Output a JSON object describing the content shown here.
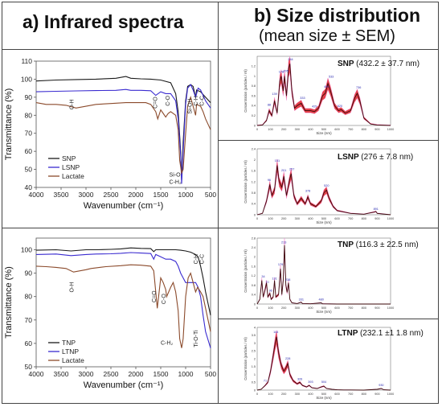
{
  "headings": {
    "a": "a) Infrared spectra",
    "b_line1": "b) Size distribution",
    "b_line2": "(mean size ± SEM)"
  },
  "chart_data": [
    {
      "id": "ir_top",
      "type": "line",
      "xlabel": "Wavenumber (cm⁻¹)",
      "ylabel": "Transmittance (%)",
      "xlim": [
        4000,
        500
      ],
      "ylim": [
        40,
        110
      ],
      "xticks": [
        4000,
        3500,
        3000,
        2500,
        2000,
        1500,
        1000,
        500
      ],
      "yticks": [
        40,
        50,
        60,
        70,
        80,
        90,
        100,
        110
      ],
      "legend": "bottom-left",
      "annotations": [
        "O-H",
        "C=O",
        "C-O",
        "Si-OH",
        "C-H",
        "C-C",
        "Si-O",
        "C-H₂"
      ],
      "series": [
        {
          "name": "SNP",
          "color": "#1a1a1a",
          "x": [
            4000,
            3600,
            3200,
            2800,
            2400,
            2200,
            2100,
            1900,
            1700,
            1500,
            1300,
            1200,
            1150,
            1100,
            1080,
            1050,
            1000,
            960,
            900,
            850,
            800,
            780,
            700,
            600,
            500
          ],
          "y": [
            99,
            99.5,
            99.8,
            100,
            100.5,
            101.5,
            100.5,
            100.2,
            100,
            99.5,
            98,
            92,
            82,
            60,
            44,
            65,
            88,
            96,
            97,
            96,
            90,
            94,
            93,
            90,
            87
          ]
        },
        {
          "name": "LSNP",
          "color": "#3a2bd0",
          "x": [
            4000,
            3600,
            3200,
            2800,
            2400,
            2200,
            2100,
            1900,
            1700,
            1600,
            1500,
            1400,
            1300,
            1200,
            1150,
            1100,
            1080,
            1050,
            1000,
            960,
            900,
            850,
            800,
            750,
            700,
            600,
            500
          ],
          "y": [
            93,
            93.3,
            93.5,
            93.7,
            93.8,
            94.3,
            93.8,
            93.8,
            93.6,
            91,
            93,
            92,
            92,
            88,
            78,
            58,
            42,
            60,
            86,
            95,
            97,
            94,
            90,
            95,
            94,
            88,
            84
          ]
        },
        {
          "name": "Lactate",
          "color": "#8b4a2b",
          "x": [
            4000,
            3800,
            3600,
            3400,
            3200,
            3000,
            2800,
            2500,
            2200,
            2000,
            1800,
            1700,
            1600,
            1560,
            1500,
            1450,
            1400,
            1350,
            1300,
            1200,
            1150,
            1120,
            1080,
            1050,
            1000,
            960,
            900,
            850,
            800,
            780,
            700,
            650,
            600,
            500
          ],
          "y": [
            87,
            86,
            86,
            85.5,
            84,
            85,
            86,
            86.5,
            87,
            87,
            87,
            86,
            82,
            78,
            83,
            81,
            79,
            81,
            82,
            80,
            72,
            55,
            48,
            50,
            70,
            85,
            90,
            85,
            80,
            86,
            85,
            82,
            78,
            72
          ]
        }
      ]
    },
    {
      "id": "ir_bottom",
      "type": "line",
      "xlabel": "Wavenumber (cm⁻¹)",
      "ylabel": "Transmittance (%)",
      "xlim": [
        4000,
        500
      ],
      "ylim": [
        50,
        105
      ],
      "xticks": [
        4000,
        3500,
        3000,
        2500,
        2000,
        1500,
        1000,
        500
      ],
      "yticks": [
        50,
        60,
        70,
        80,
        90,
        100
      ],
      "legend": "bottom-left",
      "annotations": [
        "O-H",
        "C=O",
        "C-O",
        "C-H",
        "C-C",
        "C-H₂",
        "Ti-O-Ti"
      ],
      "series": [
        {
          "name": "TNP",
          "color": "#1a1a1a",
          "x": [
            4000,
            3600,
            3300,
            3000,
            2800,
            2500,
            2300,
            2100,
            1900,
            1700,
            1640,
            1600,
            1500,
            1400,
            1300,
            1200,
            1100,
            1000,
            900,
            800,
            750,
            700,
            650,
            600,
            500
          ],
          "y": [
            99.8,
            100,
            99.5,
            100,
            100,
            100.2,
            100.4,
            100.8,
            100.6,
            100.5,
            99.2,
            100,
            100,
            100,
            100,
            100,
            99.8,
            99.5,
            99,
            98,
            97,
            93,
            88,
            82,
            72
          ]
        },
        {
          "name": "LTNP",
          "color": "#3a2bd0",
          "x": [
            4000,
            3600,
            3300,
            3000,
            2800,
            2500,
            2300,
            2100,
            1900,
            1700,
            1640,
            1600,
            1500,
            1400,
            1300,
            1200,
            1150,
            1100,
            1050,
            1000,
            900,
            800,
            750,
            700,
            650,
            600,
            500
          ],
          "y": [
            98,
            98.2,
            97.5,
            98,
            98.2,
            98.3,
            98.5,
            98.8,
            98.6,
            98.4,
            96,
            98,
            97,
            96,
            96,
            95,
            93,
            90,
            88,
            86,
            86,
            86,
            84,
            80,
            72,
            65,
            58
          ]
        },
        {
          "name": "Lactate",
          "color": "#8b4a2b",
          "x": [
            4000,
            3800,
            3600,
            3400,
            3250,
            3000,
            2900,
            2600,
            2300,
            2100,
            1900,
            1700,
            1640,
            1600,
            1570,
            1500,
            1450,
            1400,
            1380,
            1300,
            1250,
            1200,
            1150,
            1120,
            1080,
            1050,
            1000,
            950,
            900,
            850,
            800,
            760,
            700,
            650,
            600,
            500
          ],
          "y": [
            93,
            92.8,
            92.5,
            92,
            90.5,
            91.5,
            92,
            92.8,
            93.2,
            93.6,
            93.4,
            93,
            91,
            82,
            75,
            88,
            86,
            83,
            80,
            84,
            86,
            82,
            74,
            62,
            58,
            62,
            80,
            88,
            90,
            86,
            82,
            84,
            82,
            80,
            75,
            65
          ]
        }
      ]
    },
    {
      "id": "size_snp",
      "type": "area",
      "label": "SNP",
      "stat": "(432.2 ± 37.7 nm)",
      "xlabel": "Size (nm)",
      "ylabel": "Concentration (particles / ml)",
      "xlim": [
        0,
        1000
      ],
      "ylim": [
        0,
        1.4
      ],
      "xticks": [
        0,
        100,
        200,
        300,
        400,
        500,
        600,
        700,
        800,
        900,
        1000
      ],
      "yticks": [
        0,
        0.2,
        0.4,
        0.6,
        0.8,
        1.0,
        1.2
      ],
      "peak_labels": [
        {
          "x": 90,
          "y": 0.38,
          "text": "88"
        },
        {
          "x": 130,
          "y": 0.6,
          "text": "139"
        },
        {
          "x": 180,
          "y": 1.05,
          "text": "178"
        },
        {
          "x": 215,
          "y": 1.07,
          "text": "205"
        },
        {
          "x": 250,
          "y": 1.3,
          "text": "244"
        },
        {
          "x": 340,
          "y": 0.52,
          "text": "333"
        },
        {
          "x": 430,
          "y": 0.35,
          "text": "429"
        },
        {
          "x": 520,
          "y": 0.75,
          "text": "499"
        },
        {
          "x": 555,
          "y": 0.95,
          "text": "533"
        },
        {
          "x": 620,
          "y": 0.36,
          "text": "620"
        },
        {
          "x": 760,
          "y": 0.73,
          "text": "736"
        }
      ],
      "x": [
        0,
        40,
        70,
        90,
        110,
        130,
        150,
        170,
        180,
        195,
        205,
        220,
        235,
        245,
        260,
        280,
        300,
        330,
        360,
        400,
        430,
        460,
        490,
        510,
        530,
        550,
        580,
        610,
        630,
        660,
        700,
        730,
        750,
        770,
        800,
        850,
        900,
        1000
      ],
      "y": [
        0,
        0.01,
        0.1,
        0.3,
        0.2,
        0.5,
        0.25,
        0.9,
        1.0,
        0.7,
        1.0,
        0.6,
        1.15,
        1.25,
        0.7,
        0.35,
        0.4,
        0.45,
        0.3,
        0.3,
        0.28,
        0.35,
        0.6,
        0.65,
        0.85,
        0.7,
        0.4,
        0.3,
        0.32,
        0.25,
        0.3,
        0.55,
        0.65,
        0.5,
        0.15,
        0.03,
        0.01,
        0
      ]
    },
    {
      "id": "size_lsnp",
      "type": "area",
      "label": "LSNP",
      "stat": "(276 ± 7.8 nm)",
      "xlabel": "Size (nm)",
      "ylabel": "Concentration (particles / ml)",
      "xlim": [
        0,
        1000
      ],
      "ylim": [
        0,
        2.4
      ],
      "xticks": [
        0,
        100,
        200,
        300,
        400,
        500,
        600,
        700,
        800,
        900,
        1000
      ],
      "yticks": [
        0,
        0.4,
        0.8,
        1.2,
        1.6,
        2.0,
        2.4
      ],
      "peak_labels": [
        {
          "x": 90,
          "y": 1.2,
          "text": "96"
        },
        {
          "x": 150,
          "y": 1.9,
          "text": "151"
        },
        {
          "x": 200,
          "y": 1.55,
          "text": "201"
        },
        {
          "x": 260,
          "y": 1.6,
          "text": "257"
        },
        {
          "x": 380,
          "y": 0.8,
          "text": "378"
        },
        {
          "x": 520,
          "y": 1.0,
          "text": "520"
        },
        {
          "x": 890,
          "y": 0.15,
          "text": "891"
        }
      ],
      "x": [
        0,
        40,
        70,
        95,
        110,
        130,
        150,
        165,
        185,
        200,
        220,
        240,
        255,
        275,
        300,
        330,
        360,
        380,
        400,
        440,
        480,
        500,
        520,
        540,
        570,
        600,
        650,
        700,
        800,
        880,
        890,
        900,
        1000
      ],
      "y": [
        0,
        0.05,
        0.5,
        1.1,
        0.7,
        0.9,
        1.8,
        1.2,
        1.0,
        1.4,
        0.7,
        1.2,
        1.5,
        0.7,
        0.4,
        0.6,
        0.4,
        0.65,
        0.4,
        0.3,
        0.5,
        0.8,
        0.9,
        0.6,
        0.3,
        0.15,
        0.1,
        0.05,
        0.02,
        0.1,
        0.12,
        0.05,
        0
      ]
    },
    {
      "id": "size_tnp",
      "type": "area",
      "label": "TNP",
      "stat": "(116.3 ± 22.5 nm)",
      "xlabel": "Size (nm)",
      "ylabel": "Concentration (particles / ml)",
      "xlim": [
        0,
        1000
      ],
      "ylim": [
        0,
        2.8
      ],
      "xticks": [
        0,
        100,
        200,
        300,
        400,
        500,
        600,
        700,
        800,
        900,
        1000
      ],
      "yticks": [
        0,
        0.4,
        0.8,
        1.2,
        1.6,
        2.0,
        2.4,
        2.8
      ],
      "peak_labels": [
        {
          "x": 45,
          "y": 1.1,
          "text": "34"
        },
        {
          "x": 75,
          "y": 0.85,
          "text": "70"
        },
        {
          "x": 100,
          "y": 0.5,
          "text": "96"
        },
        {
          "x": 130,
          "y": 1.0,
          "text": "131"
        },
        {
          "x": 175,
          "y": 1.6,
          "text": "179"
        },
        {
          "x": 200,
          "y": 2.55,
          "text": "213"
        },
        {
          "x": 230,
          "y": 0.95,
          "text": "238"
        },
        {
          "x": 330,
          "y": 0.12,
          "text": "331"
        },
        {
          "x": 480,
          "y": 0.12,
          "text": "480"
        }
      ],
      "x": [
        0,
        20,
        35,
        45,
        55,
        70,
        80,
        95,
        105,
        120,
        130,
        140,
        160,
        175,
        185,
        195,
        205,
        215,
        225,
        235,
        245,
        260,
        300,
        330,
        340,
        400,
        480,
        490,
        600,
        800,
        1000
      ],
      "y": [
        0,
        0.2,
        1.0,
        0.3,
        0.5,
        0.9,
        0.3,
        0.45,
        0.2,
        0.3,
        1.0,
        0.3,
        0.4,
        1.5,
        0.4,
        1.0,
        2.5,
        0.8,
        0.5,
        0.9,
        0.2,
        0.05,
        0.02,
        0.08,
        0.02,
        0.01,
        0.05,
        0.01,
        0,
        0,
        0
      ]
    },
    {
      "id": "size_ltnp",
      "type": "area",
      "label": "LTNP",
      "stat": "(232.1 ±1 1.8 nm)",
      "xlabel": "Size (nm)",
      "ylabel": "Concentration (particles / ml)",
      "xlim": [
        0,
        1000
      ],
      "ylim": [
        0,
        4.0
      ],
      "xticks": [
        0,
        100,
        200,
        300,
        400,
        500,
        600,
        700,
        800,
        900,
        1000
      ],
      "yticks": [
        0,
        0.5,
        1.0,
        1.5,
        2.0,
        2.5,
        3.0,
        3.5,
        4.0
      ],
      "peak_labels": [
        {
          "x": 60,
          "y": 0.5,
          "text": "71"
        },
        {
          "x": 140,
          "y": 3.6,
          "text": "144"
        },
        {
          "x": 230,
          "y": 1.9,
          "text": "228"
        },
        {
          "x": 320,
          "y": 0.6,
          "text": "326"
        },
        {
          "x": 400,
          "y": 0.4,
          "text": "393"
        },
        {
          "x": 500,
          "y": 0.4,
          "text": "504"
        },
        {
          "x": 930,
          "y": 0.2,
          "text": "930"
        }
      ],
      "x": [
        0,
        30,
        60,
        80,
        100,
        120,
        135,
        145,
        160,
        180,
        200,
        215,
        230,
        245,
        270,
        300,
        320,
        340,
        370,
        390,
        410,
        450,
        480,
        500,
        520,
        560,
        600,
        650,
        700,
        800,
        900,
        930,
        950,
        1000
      ],
      "y": [
        0,
        0.05,
        0.3,
        0.5,
        1.2,
        2.2,
        3.0,
        3.4,
        2.4,
        1.6,
        1.2,
        1.4,
        1.7,
        1.0,
        0.6,
        0.4,
        0.5,
        0.3,
        0.2,
        0.3,
        0.15,
        0.1,
        0.2,
        0.25,
        0.1,
        0.05,
        0.02,
        0.01,
        0.01,
        0,
        0.05,
        0.1,
        0.02,
        0
      ]
    }
  ]
}
